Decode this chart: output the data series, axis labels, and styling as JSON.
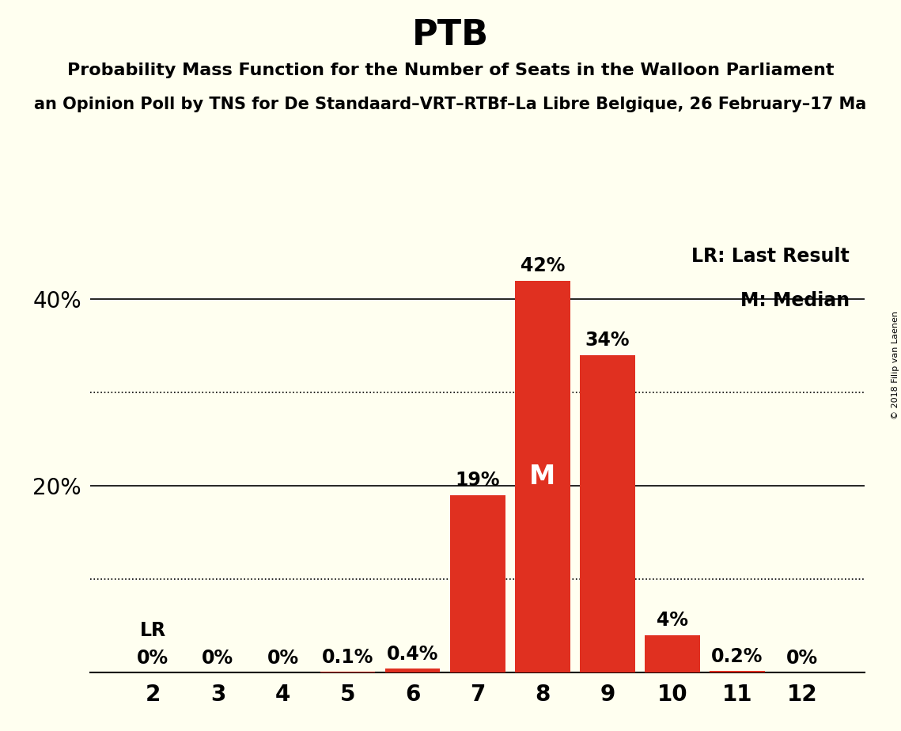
{
  "title": "PTB",
  "subtitle1": "Probability Mass Function for the Number of Seats in the Walloon Parliament",
  "subtitle2": "an Opinion Poll by TNS for De Standaard–VRT–RTBf–La Libre Belgique, 26 February–17 Ma",
  "copyright": "© 2018 Filip van Laenen",
  "categories": [
    2,
    3,
    4,
    5,
    6,
    7,
    8,
    9,
    10,
    11,
    12
  ],
  "values": [
    0.0,
    0.0,
    0.0,
    0.1,
    0.4,
    19.0,
    42.0,
    34.0,
    4.0,
    0.2,
    0.0
  ],
  "labels": [
    "0%",
    "0%",
    "0%",
    "0.1%",
    "0.4%",
    "19%",
    "42%",
    "34%",
    "4%",
    "0.2%",
    "0%"
  ],
  "bar_color": "#e03020",
  "background_color": "#fffff0",
  "median_bar": 8,
  "lr_bar": 2,
  "legend_lr": "LR: Last Result",
  "legend_m": "M: Median",
  "lr_label": "LR",
  "m_label": "M",
  "solid_hlines": [
    20,
    40
  ],
  "dotted_hlines": [
    10,
    30
  ],
  "ytick_labels": [
    20,
    40
  ],
  "ylim": [
    0,
    47
  ],
  "title_fontsize": 32,
  "subtitle1_fontsize": 16,
  "subtitle2_fontsize": 15,
  "axis_label_fontsize": 20,
  "bar_label_fontsize": 17,
  "legend_fontsize": 17,
  "m_fontsize": 24,
  "lr_fontsize": 17,
  "copyright_fontsize": 8
}
